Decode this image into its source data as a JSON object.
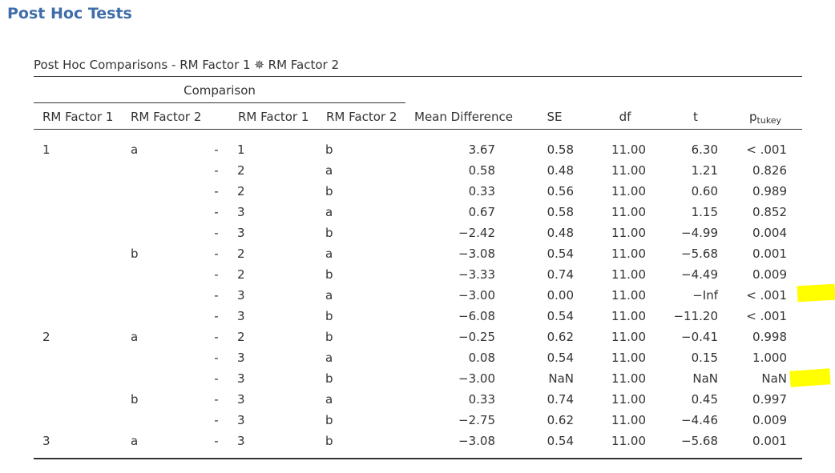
{
  "section_title": "Post Hoc Tests",
  "table": {
    "title": "Post Hoc Comparisons - RM Factor 1 ✵ RM Factor 2",
    "group_header": "Comparison",
    "columns": {
      "rm_factor_1": "RM Factor 1",
      "rm_factor_2": "RM Factor 2",
      "cmp_rm_factor_1": "RM Factor 1",
      "cmp_rm_factor_2": "RM Factor 2",
      "mean_difference": "Mean Difference",
      "se": "SE",
      "df": "df",
      "t": "t",
      "p_main": "p",
      "p_sub": "tukey"
    },
    "rows": [
      {
        "f1": "1",
        "f2": "a",
        "dash": "-",
        "cf1": "1",
        "cf2": "b",
        "md": "3.67",
        "se": "0.58",
        "df": "11.00",
        "t": "6.30",
        "p": "< .001"
      },
      {
        "f1": "",
        "f2": "",
        "dash": "-",
        "cf1": "2",
        "cf2": "a",
        "md": "0.58",
        "se": "0.48",
        "df": "11.00",
        "t": "1.21",
        "p": "0.826"
      },
      {
        "f1": "",
        "f2": "",
        "dash": "-",
        "cf1": "2",
        "cf2": "b",
        "md": "0.33",
        "se": "0.56",
        "df": "11.00",
        "t": "0.60",
        "p": "0.989"
      },
      {
        "f1": "",
        "f2": "",
        "dash": "-",
        "cf1": "3",
        "cf2": "a",
        "md": "0.67",
        "se": "0.58",
        "df": "11.00",
        "t": "1.15",
        "p": "0.852"
      },
      {
        "f1": "",
        "f2": "",
        "dash": "-",
        "cf1": "3",
        "cf2": "b",
        "md": "−2.42",
        "se": "0.48",
        "df": "11.00",
        "t": "−4.99",
        "p": "0.004"
      },
      {
        "f1": "",
        "f2": "b",
        "dash": "-",
        "cf1": "2",
        "cf2": "a",
        "md": "−3.08",
        "se": "0.54",
        "df": "11.00",
        "t": "−5.68",
        "p": "0.001"
      },
      {
        "f1": "",
        "f2": "",
        "dash": "-",
        "cf1": "2",
        "cf2": "b",
        "md": "−3.33",
        "se": "0.74",
        "df": "11.00",
        "t": "−4.49",
        "p": "0.009"
      },
      {
        "f1": "",
        "f2": "",
        "dash": "-",
        "cf1": "3",
        "cf2": "a",
        "md": "−3.00",
        "se": "0.00",
        "df": "11.00",
        "t": "−Inf",
        "p": "< .001"
      },
      {
        "f1": "",
        "f2": "",
        "dash": "-",
        "cf1": "3",
        "cf2": "b",
        "md": "−6.08",
        "se": "0.54",
        "df": "11.00",
        "t": "−11.20",
        "p": "< .001"
      },
      {
        "f1": "2",
        "f2": "a",
        "dash": "-",
        "cf1": "2",
        "cf2": "b",
        "md": "−0.25",
        "se": "0.62",
        "df": "11.00",
        "t": "−0.41",
        "p": "0.998"
      },
      {
        "f1": "",
        "f2": "",
        "dash": "-",
        "cf1": "3",
        "cf2": "a",
        "md": "0.08",
        "se": "0.54",
        "df": "11.00",
        "t": "0.15",
        "p": "1.000"
      },
      {
        "f1": "",
        "f2": "",
        "dash": "-",
        "cf1": "3",
        "cf2": "b",
        "md": "−3.00",
        "se": "NaN",
        "df": "11.00",
        "t": "NaN",
        "p": "NaN"
      },
      {
        "f1": "",
        "f2": "b",
        "dash": "-",
        "cf1": "3",
        "cf2": "a",
        "md": "0.33",
        "se": "0.74",
        "df": "11.00",
        "t": "0.45",
        "p": "0.997"
      },
      {
        "f1": "",
        "f2": "",
        "dash": "-",
        "cf1": "3",
        "cf2": "b",
        "md": "−2.75",
        "se": "0.62",
        "df": "11.00",
        "t": "−4.46",
        "p": "0.009"
      },
      {
        "f1": "3",
        "f2": "a",
        "dash": "-",
        "cf1": "3",
        "cf2": "b",
        "md": "−3.08",
        "se": "0.54",
        "df": "11.00",
        "t": "−5.68",
        "p": "0.001"
      }
    ]
  },
  "colors": {
    "title_blue": "#3e6da9",
    "text": "#333333",
    "highlight": "#ffff00"
  }
}
